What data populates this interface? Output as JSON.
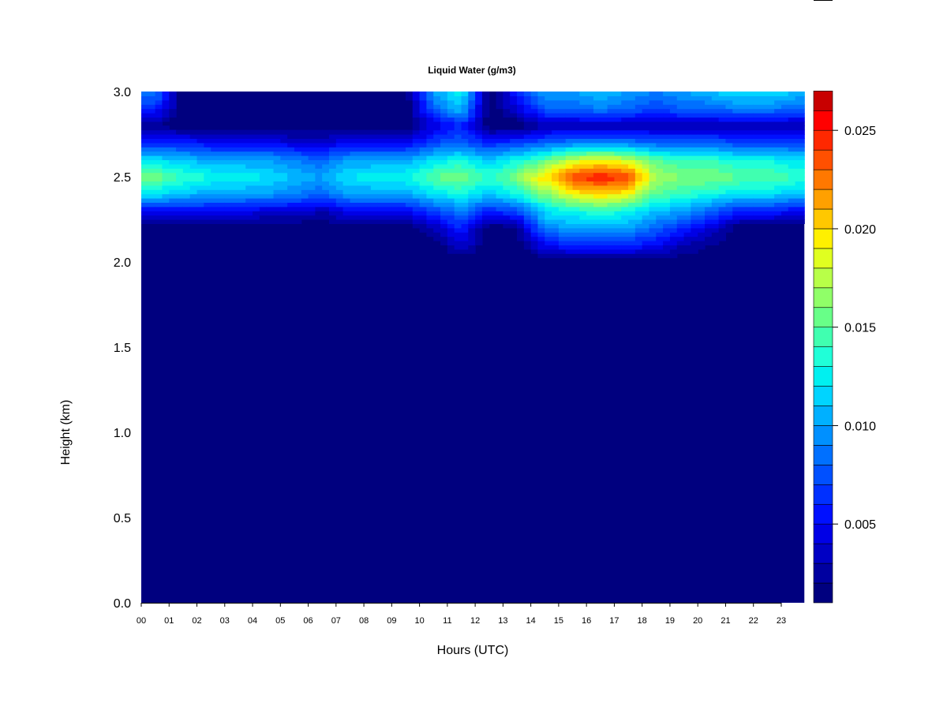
{
  "chart_data": {
    "type": "heatmap",
    "title": "Liquid Water (g/m3)",
    "xlabel": "Hours (UTC)",
    "ylabel": "Height (km)",
    "xlim": [
      0,
      23.83
    ],
    "ylim": [
      0,
      3.0
    ],
    "x_ticks": [
      "00",
      "01",
      "02",
      "03",
      "04",
      "05",
      "06",
      "07",
      "08",
      "09",
      "10",
      "11",
      "12",
      "13",
      "14",
      "15",
      "16",
      "17",
      "18",
      "19",
      "20",
      "21",
      "22",
      "23"
    ],
    "y_ticks": [
      "0.0",
      "0.5",
      "1.0",
      "1.5",
      "2.0",
      "2.5",
      "3.0"
    ],
    "colorbar": {
      "levels_min": 0.001,
      "levels_step": 0.001,
      "tick_labels": [
        "0.005",
        "0.010",
        "0.015",
        "0.020",
        "0.025"
      ],
      "tick_values": [
        0.005,
        0.01,
        0.015,
        0.02,
        0.025
      ],
      "colors": [
        "#00007f",
        "#0000a0",
        "#0000c4",
        "#0000e6",
        "#0010ff",
        "#0030ff",
        "#0050ff",
        "#0070ff",
        "#0090ff",
        "#00b0ff",
        "#00d4ff",
        "#00f0f0",
        "#20ffd8",
        "#40ffb0",
        "#68ff88",
        "#90ff68",
        "#b8ff48",
        "#e0ff20",
        "#fff000",
        "#ffc800",
        "#ffa000",
        "#ff7800",
        "#ff5000",
        "#ff2800",
        "#ff0000",
        "#c80000",
        "#800000"
      ]
    },
    "background_value": 0.001,
    "grid": false,
    "hours": [
      0,
      1,
      2,
      3,
      4,
      5,
      6,
      7,
      8,
      9,
      10,
      11,
      12,
      13,
      14,
      15,
      16,
      17,
      18,
      19,
      20,
      21,
      22,
      23
    ],
    "heights_km": [
      3.0,
      2.9,
      2.8,
      2.7,
      2.6,
      2.5,
      2.4,
      2.3,
      2.2,
      2.1,
      2.0
    ],
    "values": [
      [
        0.009,
        0.006,
        0.002,
        0.006,
        0.012,
        0.016,
        0.012,
        0.005,
        0.001,
        0.001,
        0.001
      ],
      [
        0.001,
        0.001,
        0.001,
        0.006,
        0.011,
        0.014,
        0.011,
        0.005,
        0.001,
        0.001,
        0.001
      ],
      [
        0.001,
        0.001,
        0.001,
        0.005,
        0.01,
        0.013,
        0.01,
        0.005,
        0.001,
        0.001,
        0.001
      ],
      [
        0.001,
        0.001,
        0.001,
        0.005,
        0.01,
        0.013,
        0.01,
        0.005,
        0.001,
        0.001,
        0.001
      ],
      [
        0.001,
        0.001,
        0.001,
        0.005,
        0.01,
        0.012,
        0.01,
        0.004,
        0.001,
        0.001,
        0.001
      ],
      [
        0.001,
        0.001,
        0.001,
        0.004,
        0.009,
        0.011,
        0.009,
        0.004,
        0.001,
        0.001,
        0.001
      ],
      [
        0.001,
        0.001,
        0.001,
        0.004,
        0.008,
        0.01,
        0.008,
        0.003,
        0.001,
        0.001,
        0.001
      ],
      [
        0.001,
        0.001,
        0.001,
        0.005,
        0.01,
        0.012,
        0.01,
        0.005,
        0.001,
        0.001,
        0.001
      ],
      [
        0.001,
        0.001,
        0.001,
        0.005,
        0.01,
        0.013,
        0.01,
        0.005,
        0.001,
        0.001,
        0.001
      ],
      [
        0.001,
        0.001,
        0.001,
        0.005,
        0.01,
        0.013,
        0.01,
        0.005,
        0.001,
        0.001,
        0.001
      ],
      [
        0.01,
        0.008,
        0.004,
        0.007,
        0.012,
        0.015,
        0.012,
        0.007,
        0.003,
        0.001,
        0.001
      ],
      [
        0.013,
        0.011,
        0.006,
        0.008,
        0.013,
        0.016,
        0.013,
        0.009,
        0.006,
        0.004,
        0.001
      ],
      [
        0.001,
        0.001,
        0.001,
        0.006,
        0.011,
        0.014,
        0.011,
        0.006,
        0.001,
        0.001,
        0.001
      ],
      [
        0.006,
        0.004,
        0.001,
        0.007,
        0.013,
        0.016,
        0.013,
        0.007,
        0.002,
        0.001,
        0.001
      ],
      [
        0.01,
        0.008,
        0.003,
        0.008,
        0.015,
        0.02,
        0.016,
        0.012,
        0.009,
        0.005,
        0.001
      ],
      [
        0.01,
        0.008,
        0.003,
        0.009,
        0.018,
        0.024,
        0.019,
        0.013,
        0.01,
        0.006,
        0.001
      ],
      [
        0.011,
        0.009,
        0.003,
        0.009,
        0.019,
        0.025,
        0.02,
        0.014,
        0.01,
        0.006,
        0.001
      ],
      [
        0.01,
        0.008,
        0.003,
        0.009,
        0.018,
        0.024,
        0.019,
        0.013,
        0.01,
        0.006,
        0.001
      ],
      [
        0.009,
        0.007,
        0.003,
        0.008,
        0.015,
        0.017,
        0.015,
        0.011,
        0.008,
        0.005,
        0.001
      ],
      [
        0.01,
        0.008,
        0.003,
        0.008,
        0.014,
        0.016,
        0.014,
        0.01,
        0.006,
        0.003,
        0.001
      ],
      [
        0.011,
        0.008,
        0.003,
        0.008,
        0.014,
        0.016,
        0.013,
        0.008,
        0.004,
        0.002,
        0.001
      ],
      [
        0.012,
        0.009,
        0.003,
        0.007,
        0.013,
        0.015,
        0.012,
        0.006,
        0.001,
        0.001,
        0.001
      ],
      [
        0.012,
        0.009,
        0.003,
        0.007,
        0.013,
        0.015,
        0.012,
        0.006,
        0.001,
        0.001,
        0.001
      ],
      [
        0.011,
        0.008,
        0.003,
        0.007,
        0.012,
        0.014,
        0.011,
        0.005,
        0.001,
        0.001,
        0.001
      ]
    ]
  }
}
